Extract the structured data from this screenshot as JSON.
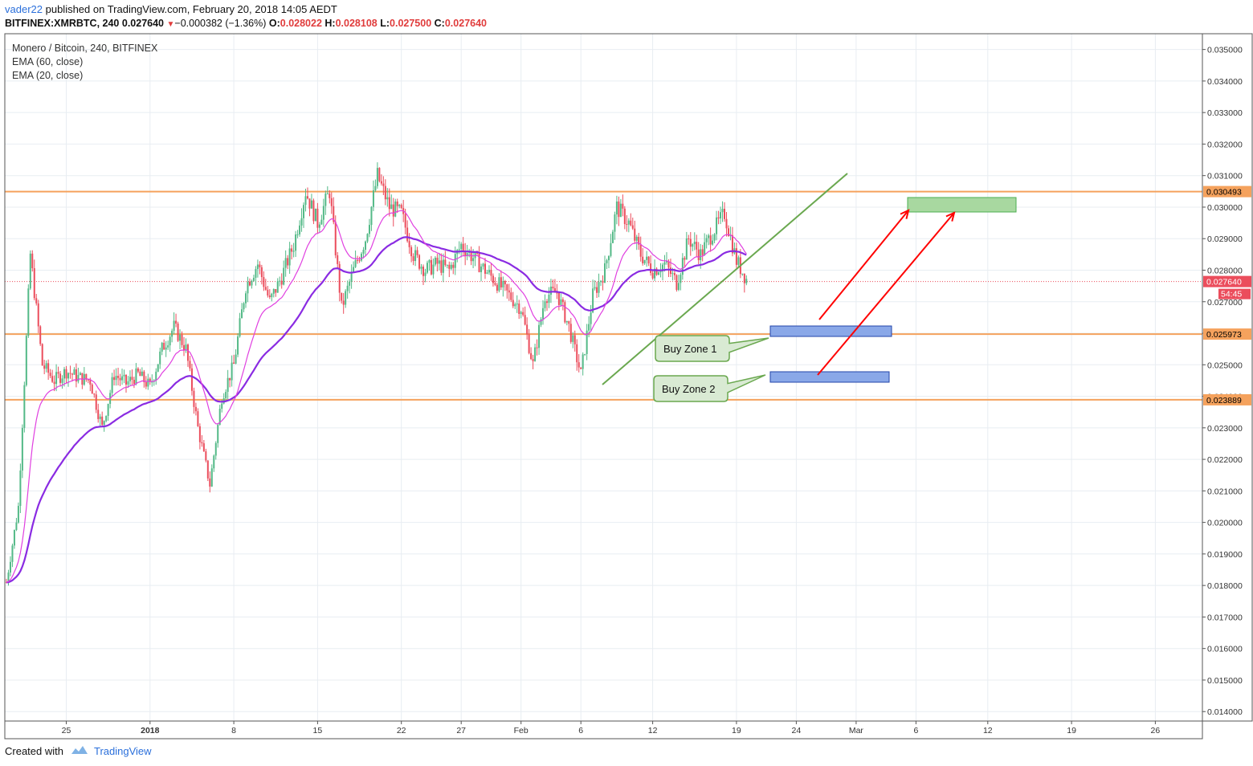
{
  "header": {
    "author": "vader22",
    "published_text": "published on TradingView.com, February 20, 2018 14:05 AEDT",
    "symbol_line": "BITFINEX:XMRBTC, 240",
    "last": "0.027640",
    "change": "−0.000382 (−1.36%)",
    "o_label": "O:",
    "o_val": "0.028022",
    "h_label": "H:",
    "h_val": "0.028108",
    "l_label": "L:",
    "l_val": "0.027500",
    "c_label": "C:",
    "c_val": "0.027640"
  },
  "legend": {
    "title": "Monero / Bitcoin, 240, BITFINEX",
    "ema60": "EMA (60, close)",
    "ema20": "EMA (20, close)"
  },
  "footer": {
    "created_with": "Created with",
    "brand": "TradingView"
  },
  "colors": {
    "up": "#53b987",
    "down": "#eb4d5c",
    "ema60": "#8a2be2",
    "ema20": "#e040e0",
    "level_line": "#f5a25d",
    "trendline": "#6aa84f",
    "arrow": "#ff0000",
    "buy_zone_fill": "#8aa8e8",
    "target_fill": "#a8d8a0",
    "grid": "#e8edf2",
    "price_tag": "#eb4d5c"
  },
  "chart_data": {
    "type": "candlestick",
    "title": "Monero / Bitcoin, 240, BITFINEX",
    "ylim": [
      0.0137,
      0.0355
    ],
    "y_ticks": [
      "0.035000",
      "0.034000",
      "0.033000",
      "0.032000",
      "0.031000",
      "0.030000",
      "0.029000",
      "0.028000",
      "0.027000",
      "0.026000",
      "0.025000",
      "0.024000",
      "0.023000",
      "0.022000",
      "0.021000",
      "0.020000",
      "0.019000",
      "0.018000",
      "0.017000",
      "0.016000",
      "0.015000",
      "0.014000"
    ],
    "x_ticks": [
      "25",
      "2018",
      "8",
      "15",
      "22",
      "27",
      "Feb",
      "6",
      "12",
      "19",
      "24",
      "Mar",
      "6",
      "12",
      "19",
      "26"
    ],
    "close_path": [
      [
        "2017-12-20",
        0.0181
      ],
      [
        "2017-12-21",
        0.0205
      ],
      [
        "2017-12-22",
        0.0285
      ],
      [
        "2017-12-23",
        0.025
      ],
      [
        "2017-12-24",
        0.0245
      ],
      [
        "2017-12-25",
        0.0248
      ],
      [
        "2017-12-26",
        0.0246
      ],
      [
        "2017-12-27",
        0.0245
      ],
      [
        "2017-12-28",
        0.023
      ],
      [
        "2017-12-29",
        0.0247
      ],
      [
        "2017-12-30",
        0.0244
      ],
      [
        "2017-12-31",
        0.0247
      ],
      [
        "2018-01-01",
        0.0243
      ],
      [
        "2018-01-02",
        0.0255
      ],
      [
        "2018-01-03",
        0.0262
      ],
      [
        "2018-01-04",
        0.0255
      ],
      [
        "2018-01-05",
        0.023
      ],
      [
        "2018-01-06",
        0.0212
      ],
      [
        "2018-01-07",
        0.024
      ],
      [
        "2018-01-08",
        0.025
      ],
      [
        "2018-01-09",
        0.0275
      ],
      [
        "2018-01-10",
        0.0282
      ],
      [
        "2018-01-11",
        0.027
      ],
      [
        "2018-01-12",
        0.0278
      ],
      [
        "2018-01-13",
        0.0288
      ],
      [
        "2018-01-14",
        0.0305
      ],
      [
        "2018-01-15",
        0.0295
      ],
      [
        "2018-01-16",
        0.0305
      ],
      [
        "2018-01-17",
        0.0268
      ],
      [
        "2018-01-18",
        0.028
      ],
      [
        "2018-01-19",
        0.029
      ],
      [
        "2018-01-20",
        0.031
      ],
      [
        "2018-01-21",
        0.03
      ],
      [
        "2018-01-22",
        0.0298
      ],
      [
        "2018-01-23",
        0.0285
      ],
      [
        "2018-01-24",
        0.028
      ],
      [
        "2018-01-25",
        0.0282
      ],
      [
        "2018-01-26",
        0.028
      ],
      [
        "2018-01-27",
        0.0288
      ],
      [
        "2018-01-28",
        0.0284
      ],
      [
        "2018-01-29",
        0.028
      ],
      [
        "2018-01-30",
        0.0276
      ],
      [
        "2018-01-31",
        0.0272
      ],
      [
        "2018-02-01",
        0.0268
      ],
      [
        "2018-02-02",
        0.025
      ],
      [
        "2018-02-03",
        0.0272
      ],
      [
        "2018-02-04",
        0.0273
      ],
      [
        "2018-02-05",
        0.0262
      ],
      [
        "2018-02-06",
        0.0247
      ],
      [
        "2018-02-07",
        0.0272
      ],
      [
        "2018-02-08",
        0.028
      ],
      [
        "2018-02-09",
        0.03
      ],
      [
        "2018-02-10",
        0.0295
      ],
      [
        "2018-02-11",
        0.0285
      ],
      [
        "2018-02-12",
        0.028
      ],
      [
        "2018-02-13",
        0.0282
      ],
      [
        "2018-02-14",
        0.0276
      ],
      [
        "2018-02-15",
        0.029
      ],
      [
        "2018-02-16",
        0.0285
      ],
      [
        "2018-02-17",
        0.0292
      ],
      [
        "2018-02-18",
        0.0298
      ],
      [
        "2018-02-19",
        0.0283
      ],
      [
        "2018-02-20",
        0.0276
      ]
    ],
    "levels": [
      {
        "label": "0.030493",
        "value": 0.030493
      },
      {
        "label": "0.025973",
        "value": 0.025973
      },
      {
        "label": "0.023889",
        "value": 0.023889
      }
    ],
    "last_price": {
      "label": "0.027640",
      "value": 0.02764
    },
    "countdown": "54:45",
    "annotations": {
      "buy_zone_1": "Buy Zone 1",
      "buy_zone_2": "Buy Zone 2"
    },
    "grid": true
  }
}
